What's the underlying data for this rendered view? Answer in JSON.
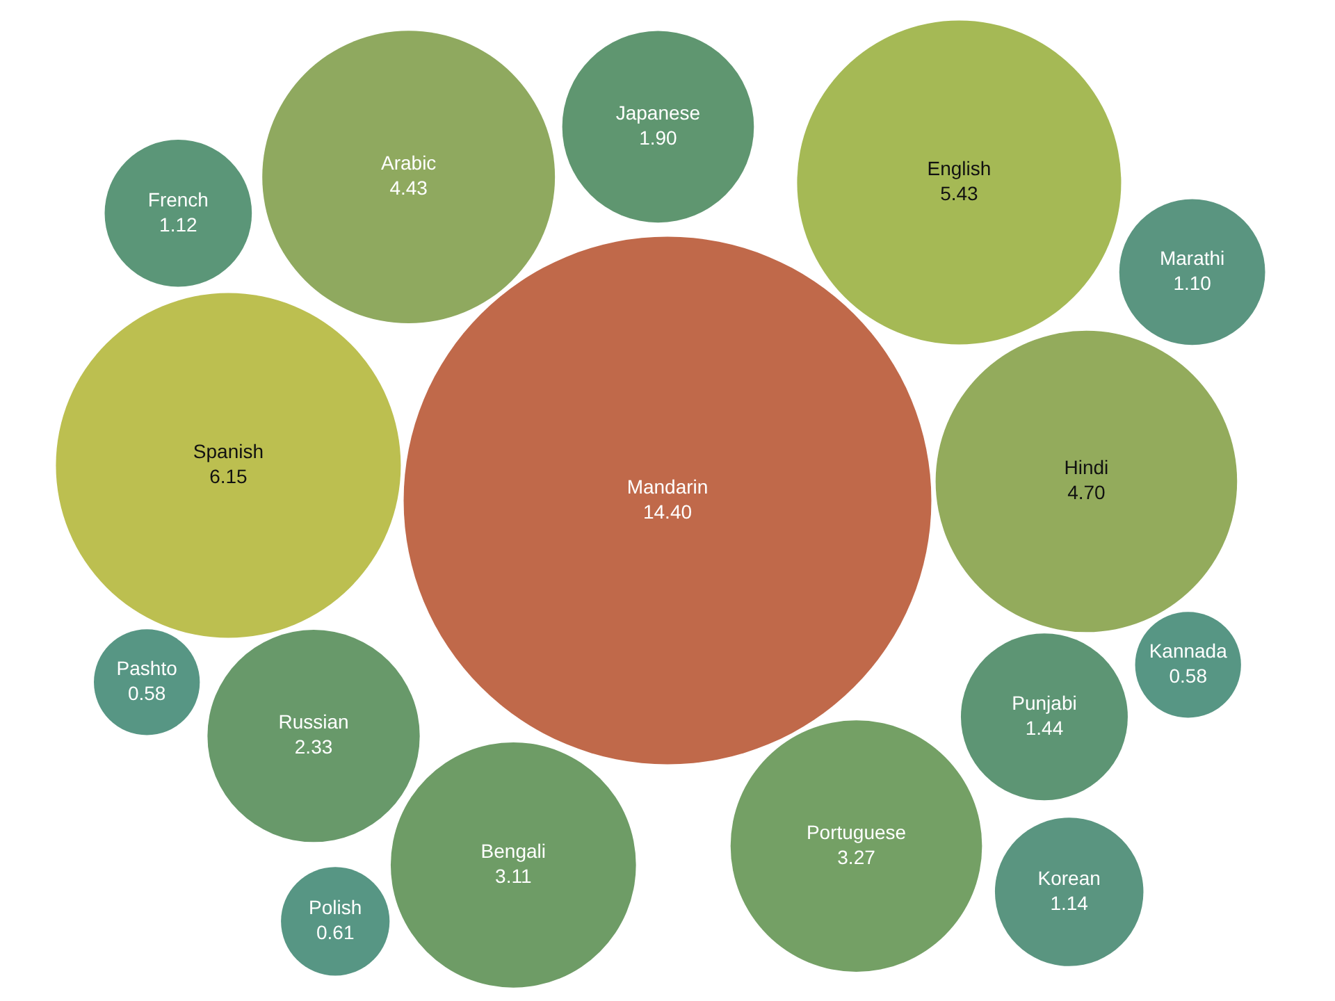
{
  "chart_data": {
    "type": "other",
    "value_labels": [
      "14.40",
      "6.15",
      "5.43",
      "4.70",
      "4.43",
      "3.27",
      "3.11",
      "2.33",
      "1.90",
      "1.44",
      "1.14",
      "1.12",
      "1.10",
      "0.61",
      "0.58",
      "0.58"
    ],
    "categories": [
      "Mandarin",
      "Spanish",
      "English",
      "Hindi",
      "Arabic",
      "Portuguese",
      "Bengali",
      "Russian",
      "Japanese",
      "Punjabi",
      "Korean",
      "French",
      "Marathi",
      "Polish",
      "Kannada",
      "Pashto"
    ],
    "values": [
      14.4,
      6.15,
      5.43,
      4.7,
      4.43,
      3.27,
      3.11,
      2.33,
      1.9,
      1.44,
      1.14,
      1.12,
      1.1,
      0.61,
      0.58,
      0.58
    ],
    "colors": [
      "#c0694a",
      "#bcbf50",
      "#a5b955",
      "#93ab5c",
      "#8fa95f",
      "#74a065",
      "#6e9c66",
      "#68996a",
      "#5f9670",
      "#5d9574",
      "#5a9580",
      "#5b9678",
      "#5a9580",
      "#579684",
      "#579684",
      "#579684"
    ]
  }
}
